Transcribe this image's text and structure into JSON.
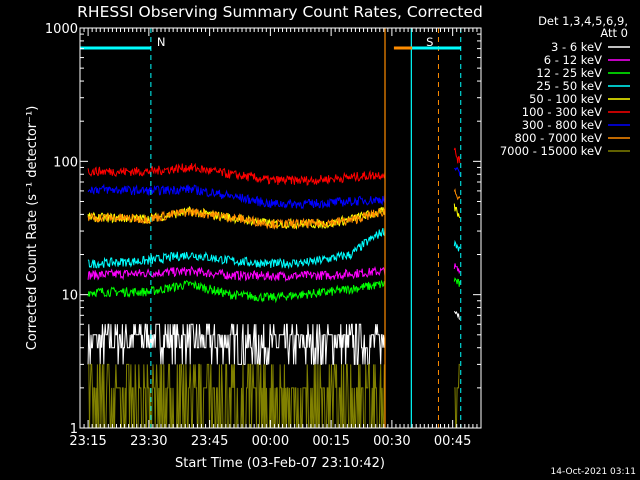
{
  "chart_data": {
    "type": "line",
    "title": "RHESSI Observing Summary Count Rates, Corrected",
    "xlabel": "Start Time (03-Feb-07 23:10:42)",
    "ylabel": "Corrected Count Rate (s⁻¹ detector⁻¹)",
    "yscale": "log",
    "ylim": [
      1,
      1000
    ],
    "xlim_minutes": [
      -2,
      97
    ],
    "x_ticks": [
      {
        "min": 0,
        "label": "23:15"
      },
      {
        "min": 15,
        "label": "23:30"
      },
      {
        "min": 30,
        "label": "23:45"
      },
      {
        "min": 45,
        "label": "00:00"
      },
      {
        "min": 60,
        "label": "00:15"
      },
      {
        "min": 75,
        "label": "00:30"
      },
      {
        "min": 90,
        "label": "00:45"
      }
    ],
    "y_ticks": [
      {
        "v": 1,
        "label": "1"
      },
      {
        "v": 10,
        "label": "10"
      },
      {
        "v": 100,
        "label": "100"
      },
      {
        "v": 1000,
        "label": "1000"
      }
    ],
    "legend_header": [
      "Det 1,3,4,5,6,9,",
      "Att 0"
    ],
    "legend_position": "right",
    "series": [
      {
        "name": "3 - 6 keV",
        "color": "#ffffff",
        "x": [
          0,
          15,
          30,
          45,
          60,
          73,
          90.5,
          91.5
        ],
        "values": [
          4.3,
          5.0,
          4.5,
          4.3,
          4.4,
          4.5,
          8.0,
          7.0
        ]
      },
      {
        "name": "6 - 12 keV",
        "color": "#ff00ff",
        "x": [
          0,
          15,
          25,
          35,
          45,
          60,
          73,
          90.5,
          91.5
        ],
        "values": [
          14,
          14.5,
          15,
          14,
          13.8,
          14,
          15,
          16,
          15
        ]
      },
      {
        "name": "12 - 25 keV",
        "color": "#00ff00",
        "x": [
          0,
          15,
          25,
          35,
          45,
          60,
          73,
          90.5,
          91.5
        ],
        "values": [
          10.5,
          10.5,
          12,
          10,
          9.5,
          10.5,
          12,
          13,
          12
        ]
      },
      {
        "name": "25 - 50 keV",
        "color": "#00ffff",
        "x": [
          0,
          15,
          25,
          35,
          45,
          55,
          65,
          73,
          90.5,
          91.5
        ],
        "values": [
          17,
          18,
          20,
          18,
          17,
          17.5,
          20,
          30,
          25,
          22
        ]
      },
      {
        "name": "50 - 100 keV",
        "color": "#ffff00",
        "x": [
          0,
          15,
          25,
          35,
          45,
          60,
          73,
          90.5,
          91.5
        ],
        "values": [
          38,
          37,
          42,
          38,
          34,
          34,
          42,
          45,
          40
        ]
      },
      {
        "name": "100 - 300 keV",
        "color": "#ff0000",
        "x": [
          0,
          15,
          25,
          35,
          45,
          55,
          65,
          73,
          90.5,
          91.5
        ],
        "values": [
          84,
          84,
          90,
          80,
          72,
          72,
          76,
          80,
          120,
          100
        ]
      },
      {
        "name": "300 - 800 keV",
        "color": "#0000ff",
        "x": [
          0,
          15,
          25,
          35,
          45,
          55,
          65,
          73,
          90.5,
          91.5
        ],
        "values": [
          62,
          60,
          62,
          55,
          48,
          48,
          50,
          52,
          90,
          80
        ]
      },
      {
        "name": "800 - 7000 keV",
        "color": "#ff8c00",
        "x": [
          0,
          15,
          25,
          35,
          45,
          55,
          65,
          73,
          90.5,
          91.5
        ],
        "values": [
          38,
          37,
          42,
          38,
          34,
          34,
          36,
          42,
          60,
          55
        ]
      },
      {
        "name": "7000 - 15000 keV",
        "color": "#808000",
        "x": [
          0,
          15,
          25,
          35,
          45,
          60,
          73,
          90.5,
          91.5
        ],
        "values": [
          1.6,
          1.6,
          1.9,
          1.6,
          1.6,
          1.6,
          1.7,
          1.3,
          1.4
        ]
      }
    ],
    "annotations": [
      {
        "label": "N",
        "color": "#00ffff",
        "bar_x": [
          -2,
          15.5
        ],
        "marker_x": 15.5
      },
      {
        "label": "S",
        "color": "#ff8c00",
        "bar_x": [
          75.5,
          86.5
        ],
        "marker_x": 86.5
      },
      {
        "label": "",
        "color": "#00ffff",
        "bar_x": [
          80,
          92
        ],
        "marker_x": 92
      }
    ],
    "vlines": [
      {
        "x": 73.3,
        "color": "#ff8c00"
      },
      {
        "x": 79.8,
        "color": "#00ffff"
      }
    ]
  },
  "footer_timestamp": "14-Oct-2021 03:11"
}
